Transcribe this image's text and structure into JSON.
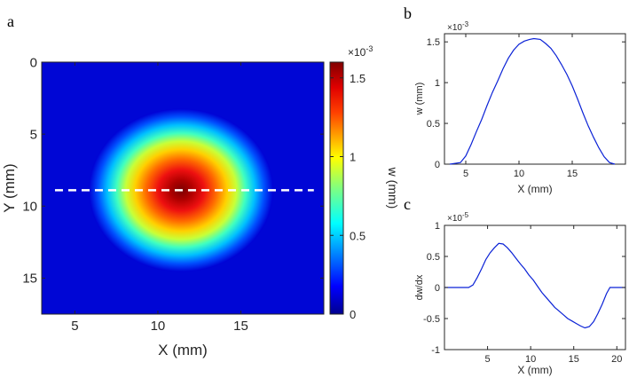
{
  "panel_labels": {
    "a": "a",
    "b": "b",
    "c": "c"
  },
  "colors": {
    "line": "#0b22d6",
    "axis": "#262626",
    "dashed_line": "#ffffff",
    "colormap": [
      "#00008f",
      "#0000ff",
      "#0080ff",
      "#00ffff",
      "#80ff80",
      "#ffff00",
      "#ff8000",
      "#ff0000",
      "#800000"
    ]
  },
  "chart_data": [
    {
      "id": "a",
      "type": "heatmap",
      "xlabel": "X (mm)",
      "ylabel": "Y (mm)",
      "xlim": [
        3,
        20
      ],
      "ylim": [
        17.5,
        0
      ],
      "xticks": [
        5,
        10,
        15
      ],
      "xtick_labels": [
        "5",
        "10",
        "15"
      ],
      "yticks": [
        0,
        5,
        10,
        15
      ],
      "ytick_labels": [
        "0",
        "5",
        "10",
        "15"
      ],
      "center": [
        11.4,
        8.9
      ],
      "peak": 0.00155,
      "dashed_line": {
        "y": 8.9,
        "x_from": 3.8,
        "x_to": 19.4
      },
      "colorbar": {
        "label": "w (mm)",
        "exponent": "×10",
        "exponent_power": "-3",
        "ticks": [
          0,
          0.5,
          1,
          1.5
        ],
        "tick_labels": [
          "0",
          "0.5",
          "1",
          "1.5"
        ],
        "range": [
          0,
          1.6
        ]
      }
    },
    {
      "id": "b",
      "type": "line",
      "xlabel": "X (mm)",
      "ylabel": "w (mm)",
      "xlim": [
        3,
        20
      ],
      "ylim": [
        0,
        1.6
      ],
      "xticks": [
        5,
        10,
        15
      ],
      "xtick_labels": [
        "5",
        "10",
        "15"
      ],
      "yticks": [
        0,
        0.5,
        1,
        1.5
      ],
      "ytick_labels": [
        "0",
        "0.5",
        "1",
        "1.5"
      ],
      "exponent": "×10",
      "exponent_power": "-3",
      "series": [
        {
          "name": "w",
          "x": [
            3.5,
            4.5,
            5.0,
            5.5,
            6.0,
            6.5,
            7.0,
            7.5,
            8.0,
            8.5,
            9.0,
            9.5,
            10.0,
            10.5,
            11.0,
            11.4,
            12.0,
            12.5,
            13.0,
            13.5,
            14.0,
            14.5,
            15.0,
            15.5,
            16.0,
            16.5,
            17.0,
            17.5,
            18.0,
            18.5,
            19.0
          ],
          "y": [
            0.0,
            0.02,
            0.1,
            0.24,
            0.4,
            0.55,
            0.72,
            0.88,
            1.02,
            1.17,
            1.3,
            1.4,
            1.47,
            1.51,
            1.53,
            1.54,
            1.53,
            1.48,
            1.42,
            1.33,
            1.22,
            1.1,
            0.96,
            0.8,
            0.63,
            0.47,
            0.33,
            0.2,
            0.09,
            0.02,
            0.0
          ]
        }
      ]
    },
    {
      "id": "c",
      "type": "line",
      "xlabel": "X (mm)",
      "ylabel": "dw/dx",
      "xlim": [
        0,
        21
      ],
      "ylim": [
        -1,
        1
      ],
      "xticks": [
        5,
        10,
        15,
        20
      ],
      "xtick_labels": [
        "5",
        "10",
        "15",
        "20"
      ],
      "yticks": [
        -1,
        -0.5,
        0,
        0.5,
        1
      ],
      "ytick_labels": [
        "-1",
        "-0.5",
        "0",
        "0.5",
        "1"
      ],
      "exponent": "×10",
      "exponent_power": "-5",
      "series": [
        {
          "name": "dw/dx",
          "x": [
            0,
            2.8,
            3.3,
            3.8,
            4.3,
            4.8,
            5.3,
            5.8,
            6.3,
            6.8,
            7.3,
            7.8,
            8.3,
            8.8,
            9.3,
            9.8,
            10.3,
            10.8,
            11.3,
            11.8,
            12.3,
            12.8,
            13.3,
            13.8,
            14.3,
            14.8,
            15.3,
            15.8,
            16.3,
            16.8,
            17.3,
            17.8,
            18.3,
            18.8,
            19.2,
            20.0,
            21.0
          ],
          "y": [
            0.0,
            0.0,
            0.04,
            0.16,
            0.3,
            0.45,
            0.56,
            0.64,
            0.71,
            0.7,
            0.64,
            0.56,
            0.47,
            0.38,
            0.3,
            0.2,
            0.12,
            0.02,
            -0.08,
            -0.16,
            -0.24,
            -0.32,
            -0.38,
            -0.44,
            -0.5,
            -0.54,
            -0.58,
            -0.62,
            -0.65,
            -0.63,
            -0.55,
            -0.42,
            -0.27,
            -0.1,
            0.0,
            0.0,
            0.0
          ]
        }
      ]
    }
  ]
}
